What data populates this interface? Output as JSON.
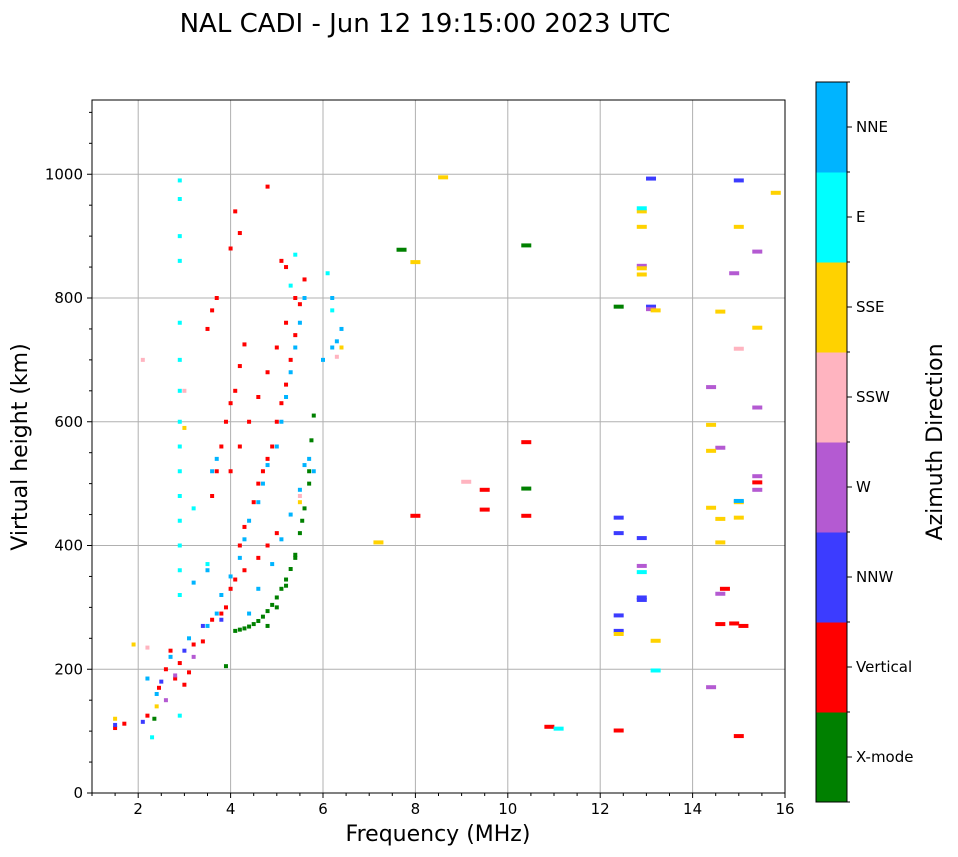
{
  "chart_data": {
    "type": "scatter",
    "title": "NAL CADI - Jun 12 19:15:00 2023 UTC",
    "xlabel": "Frequency (MHz)",
    "ylabel": "Virtual height (km)",
    "xlim": [
      1,
      16
    ],
    "ylim": [
      0,
      1120
    ],
    "xticks": [
      2,
      4,
      6,
      8,
      10,
      12,
      14,
      16
    ],
    "yticks": [
      0,
      200,
      400,
      600,
      800,
      1000
    ],
    "grid": true,
    "colorbar": {
      "title": "Azimuth Direction",
      "categories": [
        {
          "name": "X-mode",
          "color": "#008000"
        },
        {
          "name": "Vertical",
          "color": "#ff0000"
        },
        {
          "name": "NNW",
          "color": "#3c3cff"
        },
        {
          "name": "W",
          "color": "#b45ad2"
        },
        {
          "name": "SSW",
          "color": "#ffb4c0"
        },
        {
          "name": "SSE",
          "color": "#ffd200"
        },
        {
          "name": "E",
          "color": "#00ffff"
        },
        {
          "name": "NNE",
          "color": "#00b4ff"
        }
      ]
    },
    "series": [
      {
        "name": "X-mode",
        "points": [
          [
            4.1,
            262
          ],
          [
            4.2,
            264
          ],
          [
            4.3,
            266
          ],
          [
            4.4,
            269
          ],
          [
            4.5,
            273
          ],
          [
            4.6,
            278
          ],
          [
            4.7,
            285
          ],
          [
            4.8,
            294
          ],
          [
            4.9,
            304
          ],
          [
            5.0,
            316
          ],
          [
            5.1,
            330
          ],
          [
            5.2,
            345
          ],
          [
            5.3,
            362
          ],
          [
            5.4,
            385
          ],
          [
            5.5,
            420
          ],
          [
            5.6,
            460
          ],
          [
            5.7,
            520
          ],
          [
            5.75,
            570
          ],
          [
            5.8,
            610
          ],
          [
            4.8,
            270
          ],
          [
            5.0,
            300
          ],
          [
            5.2,
            335
          ],
          [
            5.4,
            380
          ],
          [
            5.55,
            440
          ],
          [
            5.7,
            500
          ],
          [
            2.35,
            120
          ],
          [
            3.9,
            205
          ],
          [
            7.7,
            878
          ],
          [
            10.4,
            885
          ],
          [
            10.4,
            492
          ],
          [
            12.4,
            786
          ]
        ]
      },
      {
        "name": "Vertical",
        "points": [
          [
            1.5,
            105
          ],
          [
            1.7,
            112
          ],
          [
            2.2,
            125
          ],
          [
            2.45,
            170
          ],
          [
            2.6,
            200
          ],
          [
            2.7,
            230
          ],
          [
            2.8,
            185
          ],
          [
            2.9,
            210
          ],
          [
            3.0,
            175
          ],
          [
            3.1,
            195
          ],
          [
            3.2,
            240
          ],
          [
            3.4,
            245
          ],
          [
            3.6,
            280
          ],
          [
            3.8,
            290
          ],
          [
            3.9,
            300
          ],
          [
            4.0,
            330
          ],
          [
            4.1,
            345
          ],
          [
            4.3,
            360
          ],
          [
            4.6,
            380
          ],
          [
            4.8,
            400
          ],
          [
            5.0,
            420
          ],
          [
            4.2,
            400
          ],
          [
            4.3,
            430
          ],
          [
            4.5,
            470
          ],
          [
            4.6,
            500
          ],
          [
            4.7,
            520
          ],
          [
            4.8,
            540
          ],
          [
            4.9,
            560
          ],
          [
            5.0,
            600
          ],
          [
            5.1,
            630
          ],
          [
            5.2,
            660
          ],
          [
            5.3,
            700
          ],
          [
            5.4,
            740
          ],
          [
            5.5,
            790
          ],
          [
            5.6,
            830
          ],
          [
            3.6,
            480
          ],
          [
            3.7,
            520
          ],
          [
            3.8,
            560
          ],
          [
            3.9,
            600
          ],
          [
            4.0,
            630
          ],
          [
            4.1,
            650
          ],
          [
            4.2,
            690
          ],
          [
            4.3,
            725
          ],
          [
            3.5,
            750
          ],
          [
            3.6,
            780
          ],
          [
            3.7,
            800
          ],
          [
            4.0,
            880
          ],
          [
            4.1,
            940
          ],
          [
            4.2,
            905
          ],
          [
            4.0,
            520
          ],
          [
            4.2,
            560
          ],
          [
            4.4,
            600
          ],
          [
            4.6,
            640
          ],
          [
            4.8,
            680
          ],
          [
            5.0,
            720
          ],
          [
            5.2,
            760
          ],
          [
            5.4,
            800
          ],
          [
            5.1,
            860
          ],
          [
            5.2,
            850
          ],
          [
            4.8,
            980
          ],
          [
            8.0,
            448
          ],
          [
            9.5,
            490
          ],
          [
            9.5,
            458
          ],
          [
            10.4,
            567
          ],
          [
            10.4,
            448
          ],
          [
            10.9,
            107
          ],
          [
            12.4,
            101
          ],
          [
            14.6,
            273
          ],
          [
            14.7,
            330
          ],
          [
            14.9,
            274
          ],
          [
            15.0,
            92
          ],
          [
            15.1,
            270
          ],
          [
            15.4,
            502
          ]
        ]
      },
      {
        "name": "NNW",
        "points": [
          [
            1.5,
            110
          ],
          [
            2.1,
            115
          ],
          [
            2.5,
            180
          ],
          [
            3.0,
            230
          ],
          [
            3.4,
            270
          ],
          [
            3.8,
            280
          ],
          [
            12.4,
            445
          ],
          [
            12.4,
            420
          ],
          [
            12.4,
            287
          ],
          [
            12.4,
            262
          ],
          [
            12.9,
            412
          ],
          [
            12.9,
            316
          ],
          [
            12.9,
            312
          ],
          [
            13.1,
            786
          ],
          [
            13.1,
            993
          ],
          [
            15.0,
            990
          ]
        ]
      },
      {
        "name": "W",
        "points": [
          [
            2.6,
            150
          ],
          [
            2.8,
            190
          ],
          [
            3.2,
            220
          ],
          [
            12.9,
            852
          ],
          [
            12.9,
            367
          ],
          [
            13.1,
            782
          ],
          [
            14.4,
            656
          ],
          [
            14.4,
            171
          ],
          [
            14.6,
            558
          ],
          [
            14.6,
            322
          ],
          [
            14.9,
            840
          ],
          [
            15.4,
            875
          ],
          [
            15.4,
            623
          ],
          [
            15.4,
            512
          ],
          [
            15.4,
            490
          ]
        ]
      },
      {
        "name": "SSW",
        "points": [
          [
            2.2,
            235
          ],
          [
            2.1,
            700
          ],
          [
            3.0,
            650
          ],
          [
            5.5,
            480
          ],
          [
            6.3,
            705
          ],
          [
            9.1,
            503
          ],
          [
            15.0,
            718
          ]
        ]
      },
      {
        "name": "SSE",
        "points": [
          [
            1.5,
            120
          ],
          [
            1.9,
            240
          ],
          [
            2.4,
            140
          ],
          [
            3.0,
            590
          ],
          [
            5.5,
            470
          ],
          [
            6.4,
            720
          ],
          [
            7.2,
            405
          ],
          [
            8.0,
            858
          ],
          [
            8.6,
            995
          ],
          [
            12.9,
            848
          ],
          [
            12.9,
            838
          ],
          [
            12.9,
            915
          ],
          [
            12.9,
            940
          ],
          [
            13.2,
            780
          ],
          [
            13.2,
            246
          ],
          [
            12.4,
            257
          ],
          [
            14.4,
            595
          ],
          [
            14.4,
            553
          ],
          [
            14.4,
            461
          ],
          [
            14.6,
            778
          ],
          [
            14.6,
            443
          ],
          [
            14.6,
            405
          ],
          [
            15.0,
            915
          ],
          [
            15.0,
            470
          ],
          [
            15.0,
            445
          ],
          [
            15.4,
            752
          ],
          [
            15.8,
            970
          ]
        ]
      },
      {
        "name": "E",
        "points": [
          [
            2.9,
            990
          ],
          [
            2.9,
            960
          ],
          [
            2.9,
            900
          ],
          [
            2.9,
            860
          ],
          [
            2.9,
            760
          ],
          [
            2.9,
            700
          ],
          [
            2.9,
            650
          ],
          [
            2.9,
            600
          ],
          [
            2.9,
            560
          ],
          [
            2.9,
            520
          ],
          [
            2.9,
            480
          ],
          [
            2.9,
            440
          ],
          [
            2.9,
            400
          ],
          [
            2.9,
            360
          ],
          [
            2.9,
            320
          ],
          [
            3.5,
            370
          ],
          [
            3.2,
            460
          ],
          [
            5.3,
            820
          ],
          [
            5.4,
            870
          ],
          [
            6.1,
            840
          ],
          [
            6.2,
            780
          ],
          [
            2.3,
            90
          ],
          [
            2.9,
            125
          ],
          [
            11.1,
            104
          ],
          [
            12.9,
            945
          ],
          [
            12.9,
            357
          ],
          [
            13.2,
            198
          ]
        ]
      },
      {
        "name": "NNE",
        "points": [
          [
            2.4,
            160
          ],
          [
            2.7,
            220
          ],
          [
            3.1,
            250
          ],
          [
            3.5,
            270
          ],
          [
            3.7,
            290
          ],
          [
            3.8,
            320
          ],
          [
            4.0,
            350
          ],
          [
            4.2,
            380
          ],
          [
            4.3,
            410
          ],
          [
            4.4,
            440
          ],
          [
            4.6,
            470
          ],
          [
            4.7,
            500
          ],
          [
            4.8,
            530
          ],
          [
            5.0,
            560
          ],
          [
            5.1,
            600
          ],
          [
            5.2,
            640
          ],
          [
            5.3,
            680
          ],
          [
            5.4,
            720
          ],
          [
            5.5,
            760
          ],
          [
            5.6,
            800
          ],
          [
            5.7,
            540
          ],
          [
            5.8,
            520
          ],
          [
            4.4,
            290
          ],
          [
            4.6,
            330
          ],
          [
            4.9,
            370
          ],
          [
            5.1,
            410
          ],
          [
            5.3,
            450
          ],
          [
            5.5,
            490
          ],
          [
            5.6,
            530
          ],
          [
            3.2,
            340
          ],
          [
            3.5,
            360
          ],
          [
            3.6,
            520
          ],
          [
            3.7,
            540
          ],
          [
            6.0,
            700
          ],
          [
            6.2,
            720
          ],
          [
            6.2,
            800
          ],
          [
            6.4,
            750
          ],
          [
            6.3,
            730
          ],
          [
            2.2,
            185
          ],
          [
            15.0,
            472
          ]
        ]
      }
    ]
  }
}
